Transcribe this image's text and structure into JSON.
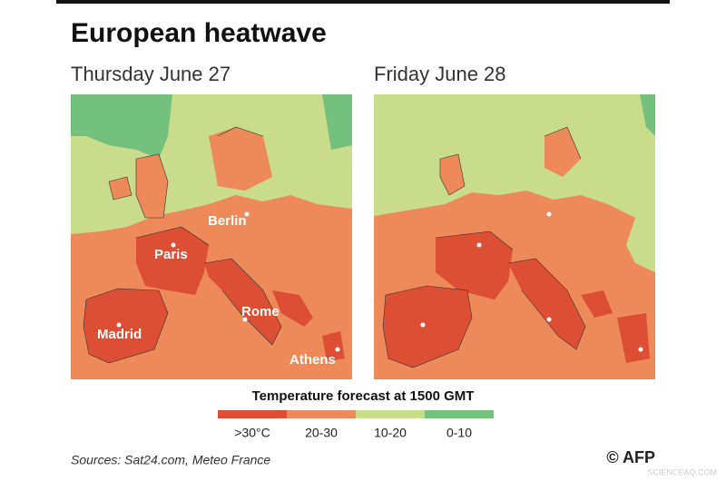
{
  "title": "European heatwave",
  "panels": [
    {
      "label": "Thursday June 27",
      "cities": [
        "Berlin",
        "Paris",
        "Rome",
        "Madrid",
        "Athens"
      ]
    },
    {
      "label": "Friday June 28"
    }
  ],
  "legend": {
    "title": "Temperature forecast at 1500 GMT",
    "items": [
      {
        "label": ">30°C",
        "color": "#dc4f35"
      },
      {
        "label": "20-30",
        "color": "#ee8a5a"
      },
      {
        "label": "10-20",
        "color": "#c9dc8b"
      },
      {
        "label": "0-10",
        "color": "#74c07d"
      }
    ]
  },
  "sources": "Sources: Sat24.com, Meteo France",
  "credit": "© AFP",
  "watermark": "SCIENCEAQ.COM"
}
